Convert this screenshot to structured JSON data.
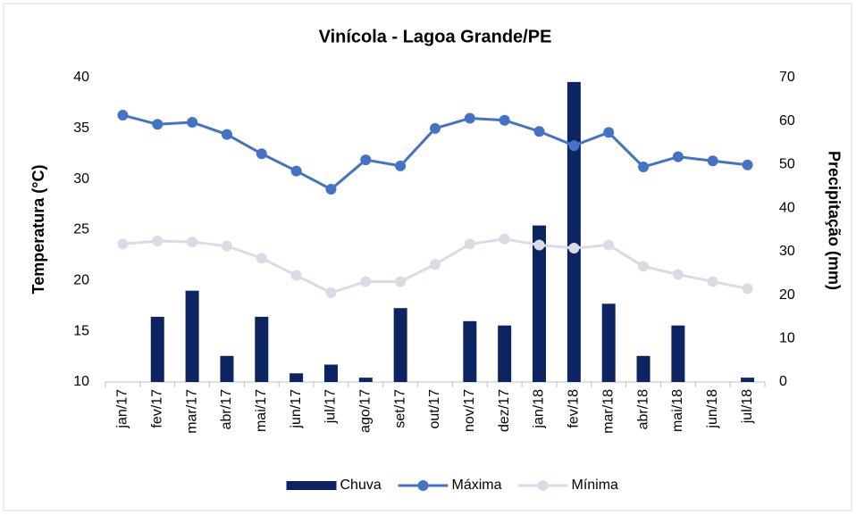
{
  "chart_data": {
    "type": "combo",
    "title": "Vinícola - Lagoa Grande/PE",
    "ylabel": "Temperatura (°C)",
    "y2label": "Precipitação (mm)",
    "categories": [
      "jan/17",
      "fev/17",
      "mar/17",
      "abr/17",
      "mai/17",
      "jun/17",
      "jul/17",
      "ago/17",
      "set/17",
      "out/17",
      "nov/17",
      "dez/17",
      "jan/18",
      "fev/18",
      "mar/18",
      "abr/18",
      "mai/18",
      "jun/18",
      "jul/18"
    ],
    "ylim": [
      10,
      40
    ],
    "yticks": [
      10,
      15,
      20,
      25,
      30,
      35,
      40
    ],
    "y2lim": [
      0,
      70
    ],
    "y2ticks": [
      0,
      10,
      20,
      30,
      40,
      50,
      60,
      70
    ],
    "legend": "bottom",
    "series": [
      {
        "name": "Chuva",
        "type": "bar",
        "axis": "y2",
        "color": "#0d2463",
        "values": [
          0,
          15,
          21,
          6,
          15,
          2,
          4,
          1,
          17,
          0,
          14,
          13,
          36,
          69,
          18,
          6,
          13,
          0,
          1
        ]
      },
      {
        "name": "Máxima",
        "type": "line",
        "color": "#4472c4",
        "values": [
          36.3,
          35.4,
          35.6,
          34.4,
          32.5,
          30.8,
          29.0,
          31.9,
          31.3,
          35.0,
          36.0,
          35.8,
          34.7,
          33.3,
          34.6,
          31.2,
          32.2,
          31.8,
          31.4
        ]
      },
      {
        "name": "Mínima",
        "type": "line",
        "color": "#d9dce5",
        "values": [
          23.6,
          23.9,
          23.8,
          23.4,
          22.2,
          20.5,
          18.8,
          19.9,
          19.9,
          21.6,
          23.6,
          24.1,
          23.5,
          23.2,
          23.5,
          21.4,
          20.6,
          19.9,
          19.2
        ]
      }
    ]
  }
}
